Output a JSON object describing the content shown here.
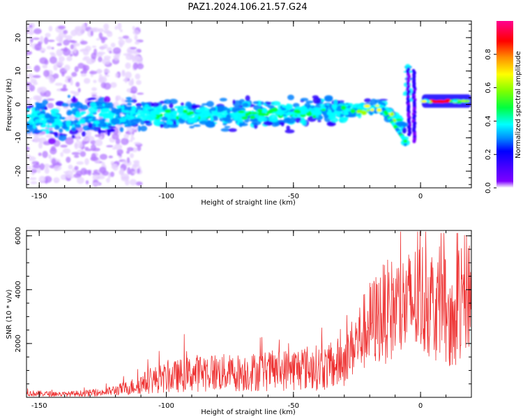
{
  "chart_data": [
    {
      "type": "heatmap",
      "title": "PAZ1.2024.106.21.57.G24",
      "xlabel": "Height of straight line (km)",
      "ylabel": "Frequency (Hz)",
      "xlim": [
        -155,
        20
      ],
      "ylim": [
        -25,
        25
      ],
      "xticks": [
        -150,
        -100,
        -50,
        0
      ],
      "yticks": [
        -20,
        -10,
        0,
        10,
        20
      ],
      "colorbar": {
        "label": "Normalized spectral amplitude",
        "range": [
          0,
          1
        ],
        "ticks": [
          "0.0",
          "0.2",
          "0.4",
          "0.6",
          "0.8"
        ],
        "colormap": [
          "#ffffff",
          "#7d00ff",
          "#2a00ff",
          "#0080ff",
          "#00ffff",
          "#00ff40",
          "#a0ff00",
          "#ffff00",
          "#ff8000",
          "#ff0000",
          "#ff0080"
        ]
      },
      "ridge": {
        "x": [
          -155,
          -120,
          -100,
          -80,
          -60,
          -40,
          -25,
          -15,
          -8,
          -6,
          -5,
          -3,
          -1,
          1,
          3,
          10,
          20
        ],
        "y": [
          -5,
          -3,
          -3,
          -3,
          -3,
          -2,
          -1.5,
          -1,
          -5,
          -11,
          10,
          -10,
          10,
          1,
          1,
          1,
          1
        ]
      },
      "grid": false
    },
    {
      "type": "line",
      "title": "",
      "xlabel": "Height of straight line (km)",
      "ylabel": "SNR (10 * v/v)",
      "xlim": [
        -155,
        20
      ],
      "ylim": [
        0,
        6200
      ],
      "xticks": [
        -150,
        -100,
        -50,
        0
      ],
      "yticks": [
        2000,
        4000,
        6000
      ],
      "series": [
        {
          "color": "#ee3333",
          "x": [
            -155,
            -140,
            -125,
            -115,
            -105,
            -95,
            -85,
            -75,
            -65,
            -55,
            -45,
            -35,
            -30,
            -25,
            -20,
            -15,
            -10,
            -5,
            0,
            5,
            10,
            12,
            15,
            20
          ],
          "y": [
            150,
            120,
            180,
            350,
            650,
            800,
            950,
            900,
            950,
            1000,
            1100,
            1100,
            1400,
            2100,
            2700,
            3100,
            3300,
            3400,
            3700,
            3500,
            3200,
            2400,
            3400,
            4200
          ]
        }
      ],
      "grid": false
    }
  ]
}
